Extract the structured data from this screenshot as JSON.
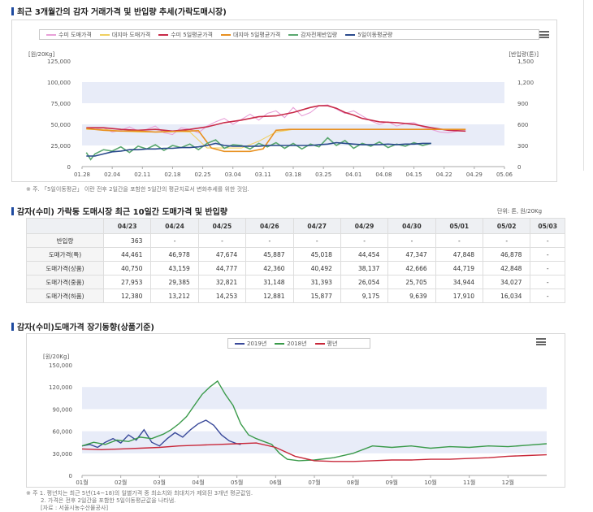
{
  "section1": {
    "title": "최근 3개월간의 감자 거래가격 및 반입량 추세(가락도매시장)",
    "note": "※ 주. 「5일이동평균」 이란 전후 2일간을 포함한 5일간의 평균치로서 변화추세를 위한 것임."
  },
  "section2": {
    "title": "감자(수미) 가락동 도매시장 최근 10일간 도매가격 및 반입량",
    "unit": "단위: 톤, 원/20Kg",
    "columns": [
      "04/23",
      "04/24",
      "04/25",
      "04/26",
      "04/27",
      "04/29",
      "04/30",
      "05/01",
      "05/02",
      "05/03"
    ],
    "rows": [
      {
        "label": "반입량",
        "values": [
          "363",
          "-",
          "-",
          "-",
          "-",
          "-",
          "-",
          "-",
          "-",
          "-"
        ]
      },
      {
        "label": "도매가격(특)",
        "values": [
          "44,461",
          "46,978",
          "47,674",
          "45,887",
          "45,018",
          "44,454",
          "47,347",
          "47,848",
          "46,878",
          "-"
        ]
      },
      {
        "label": "도매가격(상품)",
        "values": [
          "40,750",
          "43,159",
          "44,777",
          "42,360",
          "40,492",
          "38,137",
          "42,666",
          "44,719",
          "42,848",
          "-"
        ]
      },
      {
        "label": "도매가격(중품)",
        "values": [
          "27,953",
          "29,385",
          "32,821",
          "31,148",
          "31,393",
          "26,054",
          "25,705",
          "34,944",
          "34,027",
          "-"
        ]
      },
      {
        "label": "도매가격(하품)",
        "values": [
          "12,380",
          "13,212",
          "14,253",
          "12,881",
          "15,877",
          "9,175",
          "9,639",
          "17,910",
          "16,034",
          "-"
        ]
      }
    ]
  },
  "section3": {
    "title": "감자(수미)도매가격 장기동향(상품기준)",
    "notes": [
      "※ 주 1. 평년치는 최근 5년(14~18)의 일별가격 중 최소치와 최대치가 제외된 3개년 평균값임.",
      "2. 가격은 전후 2일간을 포함한 5일이동평균값을 나타냄.",
      "[자료 : 서울시농수산물공사]"
    ]
  },
  "chart_data": [
    {
      "type": "line",
      "legend": [
        "수미 도매가격",
        "대지마 도매가격",
        "수미 5일평균가격",
        "대지마 5일평균가격",
        "감자전체반입량",
        "5일이동평균량"
      ],
      "legend_placement": "top",
      "y_left_label": "[원/20Kg]",
      "y_right_label": "[반입량(톤)]",
      "y_left_ticks": [
        "125,000",
        "100,000",
        "75,000",
        "50,000",
        "25,000",
        "0"
      ],
      "y_right_ticks": [
        "1,500",
        "1,200",
        "900",
        "600",
        "300",
        "0"
      ],
      "ylim": [
        0,
        125000
      ],
      "y2lim": [
        0,
        1500
      ],
      "x_ticks": [
        "01.28",
        "02.04",
        "02.11",
        "02.18",
        "02.25",
        "03.04",
        "03.11",
        "03.18",
        "03.25",
        "04.01",
        "04.08",
        "04.15",
        "04.22",
        "04.29",
        "05.06"
      ],
      "series": [
        {
          "name": "수미 도매가격",
          "color": "#e8a0d8",
          "axis": "left",
          "x": [
            1,
            3,
            5,
            7,
            9,
            11,
            13,
            15,
            17,
            19,
            21,
            23,
            25,
            27,
            29,
            31,
            33,
            35,
            37,
            39,
            41,
            43,
            45,
            47,
            49,
            51,
            53,
            55,
            57,
            59,
            61,
            63,
            65,
            67,
            69,
            71,
            73,
            75,
            77,
            79,
            81,
            83,
            85,
            87
          ],
          "values": [
            45000,
            44000,
            46000,
            41000,
            43000,
            47000,
            42000,
            44000,
            48000,
            40000,
            38000,
            46000,
            44000,
            40000,
            48000,
            53000,
            57000,
            50000,
            56000,
            62000,
            55000,
            63000,
            66000,
            58000,
            70000,
            60000,
            64000,
            72000,
            73000,
            68000,
            63000,
            66000,
            60000,
            54000,
            50000,
            53000,
            48000,
            51000,
            52000,
            47000,
            44000,
            41000,
            40000,
            42000
          ]
        },
        {
          "name": "대지마 도매가격",
          "color": "#f0d060",
          "axis": "left",
          "x": [
            1,
            5,
            9,
            13,
            17,
            21,
            25,
            29,
            33,
            37,
            41,
            45,
            49,
            53,
            57,
            61,
            65,
            69,
            73,
            77,
            81,
            85,
            89
          ],
          "values": [
            44000,
            44000,
            42000,
            41000,
            41000,
            42000,
            41000,
            22000,
            22000,
            22000,
            30000,
            41000,
            44000,
            44000,
            44000,
            44000,
            44000,
            44000,
            44000,
            44000,
            44000,
            44000,
            44000
          ]
        },
        {
          "name": "수미 5일평균가격",
          "color": "#c82a48",
          "axis": "left",
          "x": [
            1,
            5,
            9,
            13,
            17,
            21,
            25,
            29,
            33,
            37,
            41,
            45,
            49,
            53,
            55,
            57,
            59,
            61,
            63,
            65,
            67,
            69,
            73,
            77,
            81,
            85,
            89
          ],
          "values": [
            46000,
            46000,
            44000,
            43000,
            44000,
            42000,
            44000,
            47000,
            52000,
            55000,
            59000,
            60000,
            64000,
            70000,
            72000,
            72000,
            69000,
            64000,
            61000,
            57000,
            55000,
            53000,
            52000,
            50000,
            46000,
            43000,
            42000
          ]
        },
        {
          "name": "대지마 5일평균가격",
          "color": "#e89020",
          "axis": "left",
          "x": [
            1,
            5,
            9,
            13,
            17,
            21,
            24,
            27,
            30,
            33,
            36,
            39,
            42,
            45,
            48,
            52,
            56,
            60,
            64,
            68,
            72,
            76,
            80,
            84,
            89
          ],
          "values": [
            45000,
            43000,
            42000,
            42000,
            41000,
            41500,
            42000,
            42500,
            22000,
            18000,
            18000,
            18000,
            21000,
            43000,
            44000,
            44000,
            44000,
            44000,
            44000,
            44000,
            44000,
            44000,
            44000,
            44000,
            44000
          ]
        },
        {
          "name": "감자전체반입량",
          "color": "#5aa870",
          "axis": "right",
          "x": [
            1,
            2,
            3,
            5,
            7,
            9,
            11,
            13,
            15,
            17,
            19,
            21,
            23,
            25,
            27,
            29,
            31,
            33,
            35,
            37,
            39,
            41,
            43,
            45,
            47,
            49,
            51,
            53,
            55,
            57,
            59,
            61,
            63,
            65,
            67,
            69,
            71,
            73,
            75,
            77,
            79,
            81
          ],
          "values": [
            200,
            100,
            180,
            240,
            220,
            280,
            200,
            290,
            250,
            310,
            230,
            300,
            270,
            320,
            240,
            330,
            380,
            260,
            310,
            300,
            250,
            330,
            280,
            340,
            260,
            330,
            250,
            320,
            280,
            410,
            300,
            370,
            260,
            330,
            290,
            350,
            270,
            320,
            290,
            340,
            300,
            330
          ]
        },
        {
          "name": "5일이동평균량",
          "color": "#2a4a8c",
          "axis": "right",
          "x": [
            1,
            3,
            5,
            7,
            9,
            11,
            13,
            15,
            17,
            19,
            21,
            23,
            25,
            27,
            29,
            31,
            33,
            35,
            37,
            39,
            41,
            43,
            45,
            47,
            49,
            51,
            53,
            55,
            57,
            59,
            61,
            63,
            65,
            67,
            69,
            71,
            73,
            75,
            77,
            79,
            81
          ],
          "values": [
            150,
            150,
            180,
            210,
            220,
            240,
            240,
            250,
            250,
            260,
            260,
            270,
            270,
            280,
            300,
            330,
            300,
            290,
            290,
            290,
            290,
            300,
            300,
            300,
            300,
            300,
            300,
            310,
            320,
            340,
            330,
            320,
            310,
            310,
            310,
            320,
            310,
            320,
            320,
            330,
            330
          ]
        }
      ]
    },
    {
      "type": "line",
      "legend": [
        "2019년",
        "2018년",
        "평년"
      ],
      "legend_placement": "top",
      "y_label": "[원/20Kg]",
      "y_ticks": [
        "150,000",
        "120,000",
        "90,000",
        "60,000",
        "30,000",
        "0"
      ],
      "ylim": [
        0,
        150000
      ],
      "x_ticks": [
        "01월",
        "02월",
        "03월",
        "04월",
        "05월",
        "06월",
        "07월",
        "08월",
        "09월",
        "10월",
        "11월",
        "12월"
      ],
      "series": [
        {
          "name": "2019년",
          "color": "#3a4a9a",
          "x": [
            0,
            0.2,
            0.4,
            0.6,
            0.8,
            1.0,
            1.2,
            1.4,
            1.6,
            1.8,
            2.0,
            2.2,
            2.4,
            2.6,
            2.8,
            3.0,
            3.2,
            3.4,
            3.6,
            3.8,
            4.0,
            4.1
          ],
          "values": [
            40000,
            42000,
            38000,
            45000,
            50000,
            44000,
            55000,
            48000,
            62000,
            45000,
            40000,
            50000,
            58000,
            52000,
            62000,
            70000,
            75000,
            68000,
            55000,
            47000,
            43000,
            42000
          ]
        },
        {
          "name": "2018년",
          "color": "#3a9a4a",
          "x": [
            0,
            0.3,
            0.6,
            0.9,
            1.2,
            1.5,
            1.8,
            2.1,
            2.3,
            2.5,
            2.7,
            2.9,
            3.1,
            3.3,
            3.5,
            3.7,
            3.9,
            4.1,
            4.3,
            4.5,
            4.7,
            4.9,
            5.1,
            5.3,
            5.6,
            6.0,
            6.5,
            7.0,
            7.5,
            8.0,
            8.5,
            9.0,
            9.5,
            10.0,
            10.5,
            11.0,
            11.5,
            12.0
          ],
          "values": [
            40000,
            45000,
            42000,
            48000,
            46000,
            52000,
            50000,
            56000,
            62000,
            70000,
            80000,
            95000,
            110000,
            120000,
            128000,
            110000,
            95000,
            70000,
            55000,
            50000,
            46000,
            42000,
            30000,
            22000,
            20000,
            21000,
            24000,
            30000,
            40000,
            38000,
            40000,
            37000,
            39000,
            38000,
            40000,
            39000,
            41000,
            43000
          ]
        },
        {
          "name": "평년",
          "color": "#c8283a",
          "x": [
            0,
            0.5,
            1.0,
            1.5,
            2.0,
            2.5,
            3.0,
            3.5,
            4.0,
            4.5,
            5.0,
            5.5,
            6.0,
            6.5,
            7.0,
            7.5,
            8.0,
            8.5,
            9.0,
            9.5,
            10.0,
            10.5,
            11.0,
            11.5,
            12.0
          ],
          "values": [
            36000,
            35000,
            36000,
            37000,
            38000,
            40000,
            41000,
            42000,
            43000,
            44000,
            38000,
            26000,
            20000,
            19000,
            19000,
            20000,
            21000,
            21000,
            22000,
            22000,
            23000,
            24000,
            26000,
            27000,
            28000
          ]
        }
      ]
    }
  ]
}
